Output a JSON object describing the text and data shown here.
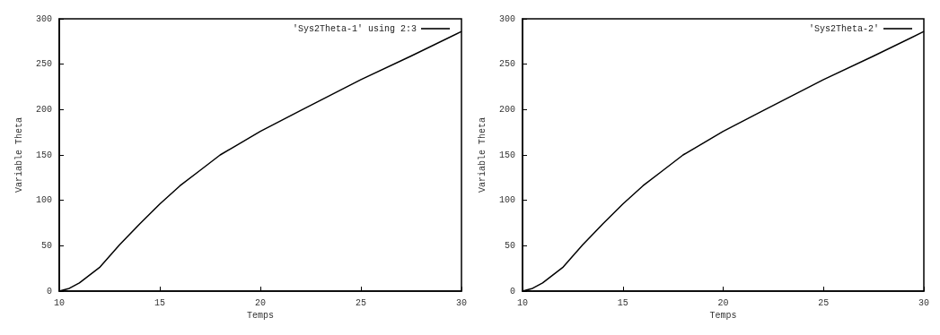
{
  "chart_data": [
    {
      "type": "line",
      "xlabel": "Temps",
      "ylabel": "Variable Theta",
      "x": [
        10,
        10.5,
        11,
        12,
        13,
        14,
        15,
        16,
        17,
        18,
        19,
        20,
        22,
        25,
        27.5,
        30
      ],
      "series": [
        {
          "name": "'Sys2Theta-1' using 2:3",
          "color": "#000000",
          "values": [
            0,
            3,
            9,
            26,
            51,
            74,
            96,
            116,
            133,
            150,
            163,
            176,
            199,
            233,
            259,
            286
          ]
        }
      ],
      "xlim": [
        10,
        30
      ],
      "xticks": [
        10,
        15,
        20,
        25,
        30
      ],
      "ylim": [
        0,
        300
      ],
      "yticks": [
        0,
        50,
        100,
        150,
        200,
        250,
        300
      ],
      "legend": "top right",
      "grid": false,
      "marker": "none"
    },
    {
      "type": "line",
      "xlabel": "Temps",
      "ylabel": "Variable Theta",
      "x": [
        10,
        10.5,
        11,
        12,
        13,
        14,
        15,
        16,
        17,
        18,
        19,
        20,
        22,
        25,
        27.5,
        30
      ],
      "series": [
        {
          "name": "'Sys2Theta-2'",
          "color": "#000000",
          "values": [
            0,
            3,
            9,
            26,
            51,
            74,
            96,
            116,
            133,
            150,
            163,
            176,
            199,
            233,
            259,
            286
          ]
        }
      ],
      "xlim": [
        10,
        30
      ],
      "xticks": [
        10,
        15,
        20,
        25,
        30
      ],
      "ylim": [
        0,
        300
      ],
      "yticks": [
        0,
        50,
        100,
        150,
        200,
        250,
        300
      ],
      "legend": "top right",
      "grid": false,
      "marker": "none"
    }
  ]
}
